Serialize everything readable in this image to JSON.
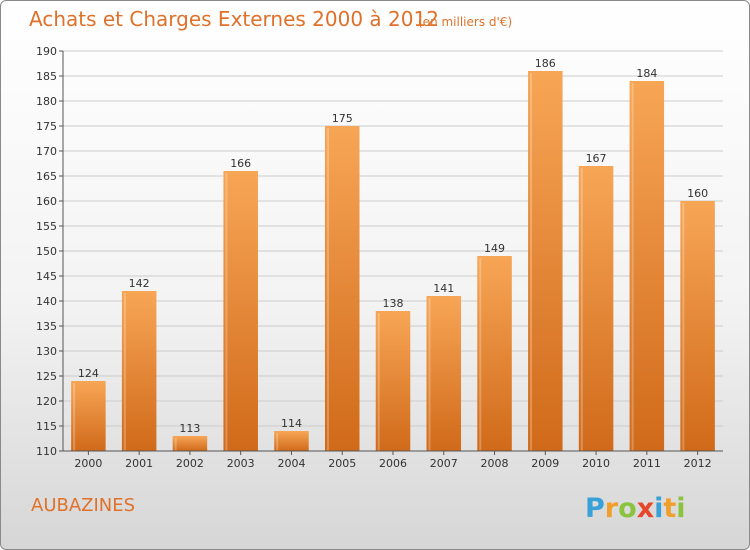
{
  "header": {
    "title": "Achats et Charges Externes 2000 à 2012",
    "subtitle": "(en milliers d'€)"
  },
  "footer": {
    "commune": "AUBAZINES",
    "logo_text": "Proxiti"
  },
  "colors": {
    "bar_light": "#f7a656",
    "bar_dark": "#d06a1a",
    "title": "#e0712a",
    "grid": "#cccccc",
    "logo_p": "#3aa0d8",
    "logo_r": "#f0a02a",
    "logo_o": "#8ac43f",
    "logo_x": "#e8462a",
    "logo_i": "#3aa0d8",
    "logo_t": "#f0a02a",
    "logo_i2": "#8ac43f"
  },
  "chart_data": {
    "type": "bar",
    "title": "Achats et Charges Externes 2000 à 2012",
    "subtitle": "(en milliers d'€)",
    "categories": [
      "2000",
      "2001",
      "2002",
      "2003",
      "2004",
      "2005",
      "2006",
      "2007",
      "2008",
      "2009",
      "2010",
      "2011",
      "2012"
    ],
    "values": [
      124,
      142,
      113,
      166,
      114,
      175,
      138,
      141,
      149,
      186,
      167,
      184,
      160
    ],
    "ylim": [
      110,
      190
    ],
    "yticks": [
      110,
      115,
      120,
      125,
      130,
      135,
      140,
      145,
      150,
      155,
      160,
      165,
      170,
      175,
      180,
      185,
      190
    ],
    "grid": true,
    "xlabel": "",
    "ylabel": ""
  }
}
